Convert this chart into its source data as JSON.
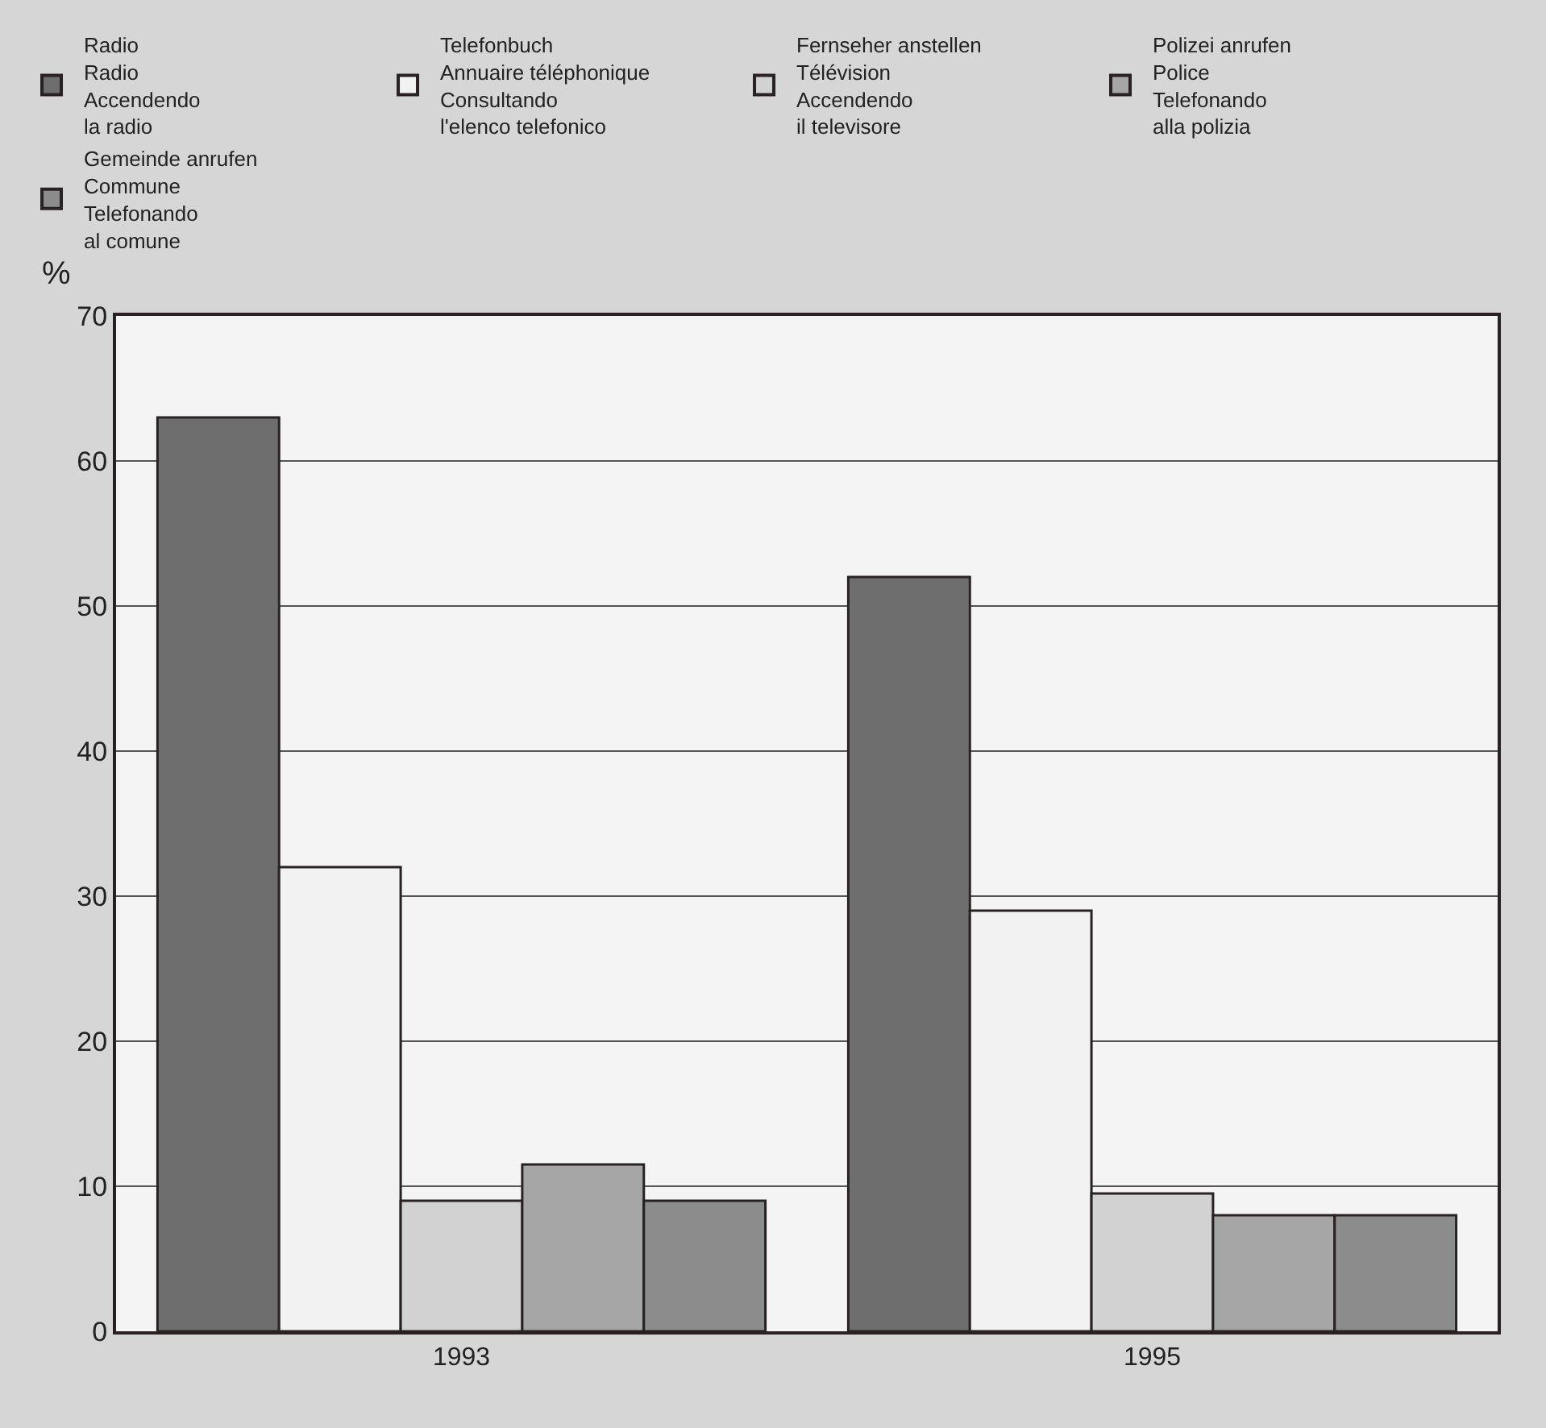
{
  "chart_data": {
    "type": "bar",
    "ylabel": "%",
    "categories": [
      "1993",
      "1995"
    ],
    "series": [
      {
        "name": "Radio\nRadio\nAccendendo\nla radio",
        "color": "#6e6e6e",
        "values": [
          63,
          52
        ]
      },
      {
        "name": "Telefonbuch\nAnnuaire téléphonique\nConsultando\nl'elenco telefonico",
        "color": "#f2f2f2",
        "values": [
          32,
          29
        ]
      },
      {
        "name": "Fernseher anstellen\nTélévision\nAccendendo\nil televisore",
        "color": "#d2d2d2",
        "values": [
          9,
          9.5
        ]
      },
      {
        "name": "Polizei anrufen\nPolice\nTelefonando\nalla polizia",
        "color": "#a6a6a6",
        "values": [
          11.5,
          8
        ]
      },
      {
        "name": "Gemeinde anrufen\nCommune\nTelefonando\nal comune",
        "color": "#8c8c8c",
        "values": [
          9,
          8
        ]
      }
    ],
    "ylim": [
      0,
      70
    ],
    "yticks": [
      0,
      10,
      20,
      30,
      40,
      50,
      60,
      70
    ],
    "grid": "y",
    "legend": "top"
  }
}
